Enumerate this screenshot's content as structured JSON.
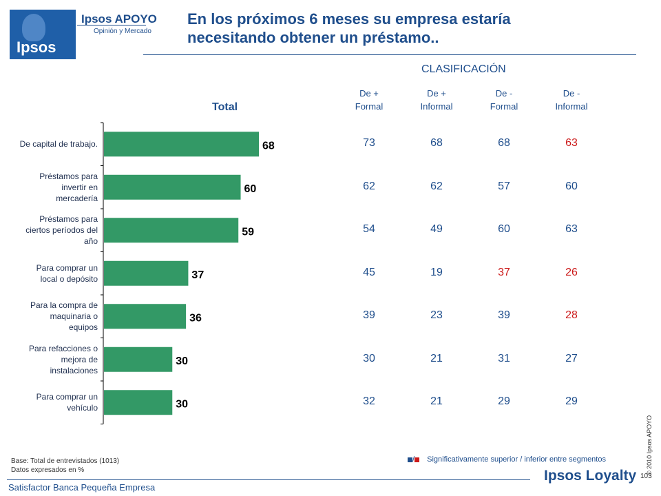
{
  "header": {
    "logo_top": "Ipsos APOYO",
    "logo_sub": "Opinión y Mercado",
    "logo_main": "Ipsos",
    "title_line1": "En los próximos 6 meses su empresa estaría",
    "title_line2": "necesitando obtener un préstamo.."
  },
  "table": {
    "group_title": "CLASIFICACIÓN",
    "columns": [
      {
        "line1": "De +",
        "line2": "Formal"
      },
      {
        "line1": "De +",
        "line2": "Informal"
      },
      {
        "line1": "De -",
        "line2": "Formal"
      },
      {
        "line1": "De  -",
        "line2": "Informal"
      }
    ],
    "rows": [
      [
        "73",
        "68",
        "68",
        "63"
      ],
      [
        "62",
        "62",
        "57",
        "60"
      ],
      [
        "54",
        "49",
        "60",
        "63"
      ],
      [
        "45",
        "19",
        "37",
        "26"
      ],
      [
        "39",
        "23",
        "39",
        "28"
      ],
      [
        "30",
        "21",
        "31",
        "27"
      ],
      [
        "32",
        "21",
        "29",
        "29"
      ]
    ],
    "highlight": [
      [
        null,
        null,
        null,
        "inferior"
      ],
      [
        null,
        null,
        null,
        null
      ],
      [
        "superior",
        null,
        null,
        null
      ],
      [
        null,
        null,
        "inferior",
        "inferior"
      ],
      [
        null,
        null,
        null,
        "inferior"
      ],
      [
        null,
        null,
        null,
        null
      ],
      [
        null,
        null,
        null,
        null
      ]
    ]
  },
  "chart_data": {
    "type": "bar",
    "orientation": "horizontal",
    "title": "Total",
    "categories": [
      "De capital de trabajo.",
      "Préstamos para invertir en mercadería",
      "Préstamos para ciertos períodos del año",
      "Para comprar un local o depósito",
      "Para la compra de maquinaria o equipos",
      "Para refacciones o mejora de instalaciones",
      "Para comprar un vehículo"
    ],
    "category_lines": [
      [
        "De capital de trabajo."
      ],
      [
        "Préstamos para",
        "invertir en",
        "mercadería"
      ],
      [
        "Préstamos para",
        "ciertos períodos del",
        "año"
      ],
      [
        "Para comprar un",
        "local o depósito"
      ],
      [
        "Para la compra de",
        "maquinaria o",
        "equipos"
      ],
      [
        "Para refacciones o",
        "mejora de",
        "instalaciones"
      ],
      [
        "Para comprar un",
        "vehículo"
      ]
    ],
    "values": [
      68,
      60,
      59,
      37,
      36,
      30,
      30
    ],
    "xlim": [
      0,
      80
    ],
    "bar_color": "#339966"
  },
  "footer": {
    "base_line1": "Base: Total de entrevistados (1013)",
    "base_line2": "Datos expresados en %",
    "legend_sep": "/",
    "legend_text": "Significativamente superior / inferior entre segmentos",
    "copyright": "© 2010 Ipsos APOYO",
    "left_text": "Satisfactor Banca Pequeña Empresa",
    "brand": "Ipsos Loyalty",
    "page": "103"
  },
  "colors": {
    "brand_blue": "#1f4e8c",
    "superior": "#1f4e8c",
    "inferior": "#cc1a1a"
  }
}
